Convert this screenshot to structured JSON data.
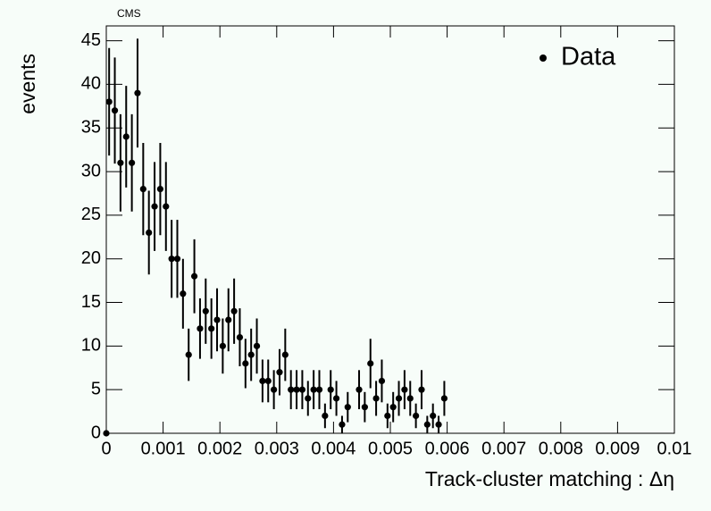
{
  "chart_data": {
    "type": "errorbar-scatter",
    "annotation": "CMS",
    "x_label": "Track-cluster matching : Δη",
    "y_label": "events",
    "xlim": [
      0,
      0.01
    ],
    "ylim": [
      0,
      46.7
    ],
    "xticks": [
      0,
      0.001,
      0.002,
      0.003,
      0.004,
      0.005,
      0.006,
      0.007,
      0.008,
      0.009,
      0.01
    ],
    "yticks": [
      0,
      5,
      10,
      15,
      20,
      25,
      30,
      35,
      40,
      45
    ],
    "legend_position": "top-right",
    "series": [
      {
        "name": "Data",
        "color": "#000000",
        "x": [
          0,
          5e-05,
          0.00015,
          0.00025,
          0.00035,
          0.00045,
          0.00055,
          0.00065,
          0.00075,
          0.00085,
          0.00095,
          0.00105,
          0.00115,
          0.00125,
          0.00135,
          0.00145,
          0.00155,
          0.00165,
          0.00175,
          0.00185,
          0.00195,
          0.00205,
          0.00215,
          0.00225,
          0.00235,
          0.00245,
          0.00255,
          0.00265,
          0.00275,
          0.00285,
          0.00295,
          0.00305,
          0.00315,
          0.00325,
          0.00335,
          0.00345,
          0.00355,
          0.00365,
          0.00375,
          0.00385,
          0.00395,
          0.00405,
          0.00415,
          0.00425,
          0.00445,
          0.00455,
          0.00465,
          0.00475,
          0.00485,
          0.00495,
          0.00505,
          0.00515,
          0.00525,
          0.00535,
          0.00545,
          0.00555,
          0.00565,
          0.00575,
          0.00585,
          0.00595
        ],
        "values": [
          0,
          38,
          37,
          31,
          34,
          31,
          39,
          28,
          23,
          26,
          28,
          26,
          20,
          20,
          16,
          9,
          18,
          12,
          14,
          12,
          13,
          10,
          13,
          14,
          11,
          8,
          9,
          10,
          6,
          6,
          5,
          7,
          9,
          5,
          5,
          5,
          4,
          5,
          5,
          2,
          5,
          4,
          1,
          3,
          5,
          3,
          8,
          4,
          6,
          2,
          3,
          4,
          5,
          4,
          2,
          5,
          1,
          2,
          1,
          4
        ],
        "errors": [
          0,
          6.16,
          6.08,
          5.57,
          5.83,
          5.57,
          6.24,
          5.29,
          4.8,
          5.1,
          5.29,
          5.1,
          4.47,
          4.47,
          4,
          3,
          4.24,
          3.46,
          3.74,
          3.46,
          3.61,
          3.16,
          3.61,
          3.74,
          3.32,
          2.83,
          3,
          3.16,
          2.45,
          2.45,
          2.24,
          2.65,
          3,
          2.24,
          2.24,
          2.24,
          2,
          2.24,
          2.24,
          1.41,
          2.24,
          2,
          1,
          1.73,
          2.24,
          1.73,
          2.83,
          2,
          2.45,
          1.41,
          1.73,
          2,
          2.24,
          2,
          1.41,
          2.24,
          1,
          1.41,
          1,
          2
        ]
      }
    ]
  }
}
